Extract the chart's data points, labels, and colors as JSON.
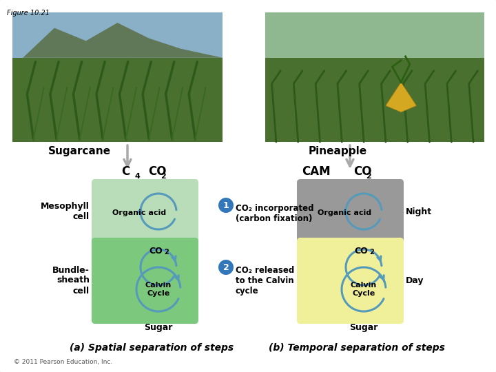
{
  "title": "Figure 10.21",
  "bg_color": "#ffffff",
  "border_color": "#c8c8c8",
  "fig_label_sugarcane": "Sugarcane",
  "fig_label_pineapple": "Pineapple",
  "c4_label": "C",
  "c4_sub": "4",
  "cam_label": "CAM",
  "co2_label": "CO",
  "co2_sub": "2",
  "mesophyll_label": "Mesophyll\ncell",
  "bundle_label": "Bundle-\nsheath\ncell",
  "organic_acid_label": "Organic acid",
  "calvin_cycle_label": "Calvin\nCycle",
  "sugar_label": "Sugar",
  "night_label": "Night",
  "day_label": "Day",
  "step1_label": "CO₂ incorporated\n(carbon fixation)",
  "step2_label": "CO₂ released\nto the Calvin\ncycle",
  "caption_a": "(a) Spatial separation of steps",
  "caption_b": "(b) Temporal separation of steps",
  "copyright": "© 2011 Pearson Education, Inc.",
  "c4_bg_top": "#b8ddb8",
  "c4_bg_bottom": "#7cc87c",
  "cam_bg_top": "#999999",
  "cam_bg_bottom": "#f0f09a",
  "photo_left_color": "#4a7030",
  "photo_right_color": "#4a7030",
  "photo_left_sky": "#8ab0c8",
  "photo_right_sky": "#90b890",
  "arrow_color": "#5599bb",
  "arrow_fill": "#88bbdd",
  "step_circle_color": "#3377bb",
  "step_text_color": "#ffffff",
  "down_arrow_color": "#aaaaaa",
  "text_color": "#000000"
}
